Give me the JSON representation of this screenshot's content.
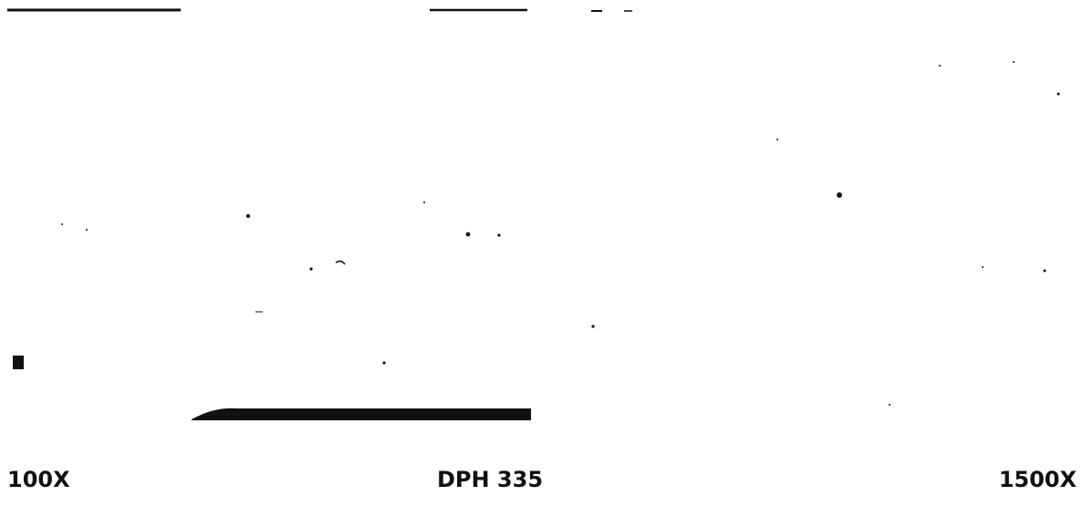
{
  "captions": [
    "100X",
    "DPH 335",
    "1500X"
  ]
}
